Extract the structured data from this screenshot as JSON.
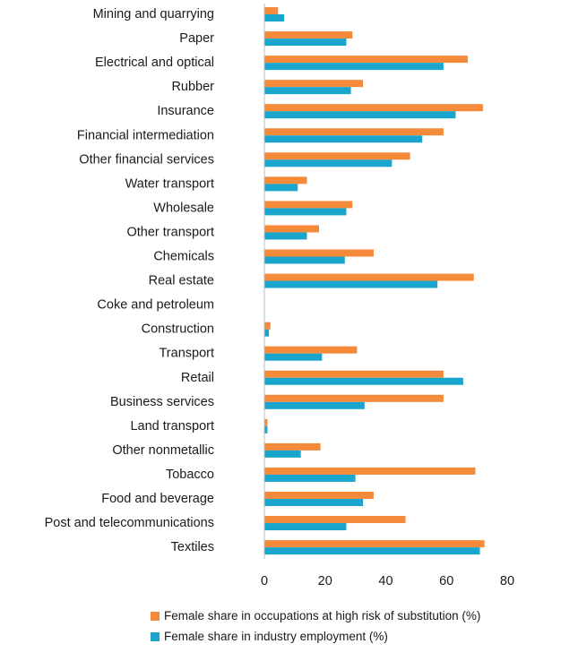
{
  "chart_data": {
    "type": "bar",
    "orientation": "horizontal",
    "categories": [
      "Mining and quarrying",
      "Paper",
      "Electrical and optical",
      "Rubber",
      "Insurance",
      "Financial intermediation",
      "Other financial services",
      "Water transport",
      "Wholesale",
      "Other transport",
      "Chemicals",
      "Real estate",
      "Coke and petroleum",
      "Construction",
      "Transport",
      "Retail",
      "Business services",
      "Land transport",
      "Other nonmetallic",
      "Tobacco",
      "Food and beverage",
      "Post and telecommunications",
      "Textiles"
    ],
    "series": [
      {
        "name": "Female share in occupations at high risk of substitution (%)",
        "color": "#f58a3a",
        "values": [
          4.5,
          29,
          67,
          32.5,
          72,
          59,
          48,
          14,
          29,
          18,
          36,
          69,
          0,
          2,
          30.5,
          59,
          59,
          1,
          18.5,
          69.5,
          36,
          46.5,
          72.5
        ]
      },
      {
        "name": "Female share in industry employment (%)",
        "color": "#1aa6cc",
        "values": [
          6.5,
          27,
          59,
          28.5,
          63,
          52,
          42,
          11,
          27,
          14,
          26.5,
          57,
          0,
          1.5,
          19,
          65.5,
          33,
          1,
          12,
          30,
          32.5,
          27,
          71
        ]
      }
    ],
    "xlim": [
      0,
      80
    ],
    "xticks": [
      "0",
      "20",
      "40",
      "60",
      "80"
    ],
    "title": "",
    "xlabel": "",
    "ylabel": "",
    "grid": false,
    "legend_position": "bottom"
  }
}
